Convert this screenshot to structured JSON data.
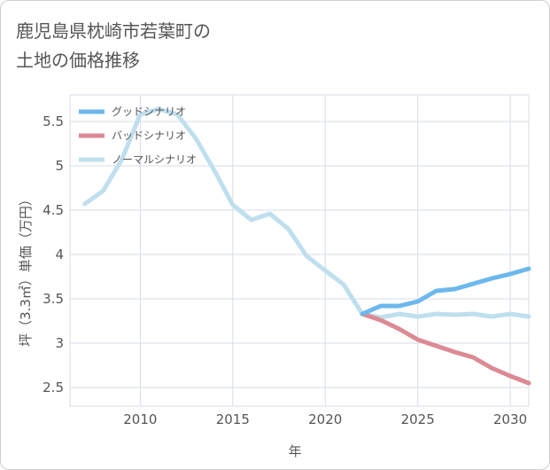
{
  "header": {
    "title_line1": "鹿児島県枕崎市若葉町の",
    "title_line2": "土地の価格推移"
  },
  "chart_data": {
    "type": "line",
    "xlabel": "年",
    "ylabel": "坪（3.3㎡）単価（万円）",
    "xlim": [
      2006.2,
      2031
    ],
    "ylim": [
      2.29,
      5.8
    ],
    "xticks": [
      2010,
      2015,
      2020,
      2025,
      2030
    ],
    "yticks": [
      2.5,
      3,
      3.5,
      4,
      4.5,
      5,
      5.5
    ],
    "grid": true,
    "legend_position": "top-left",
    "series": [
      {
        "name": "グッドシナリオ",
        "color": "#6cb8ec",
        "x": [
          2022,
          2023,
          2024,
          2025,
          2026,
          2027,
          2028,
          2029,
          2030,
          2031
        ],
        "y": [
          3.33,
          3.42,
          3.42,
          3.47,
          3.59,
          3.61,
          3.67,
          3.73,
          3.78,
          3.84
        ]
      },
      {
        "name": "バッドシナリオ",
        "color": "#dc8a94",
        "x": [
          2022,
          2023,
          2024,
          2025,
          2026,
          2027,
          2028,
          2029,
          2030,
          2031
        ],
        "y": [
          3.33,
          3.26,
          3.16,
          3.04,
          2.97,
          2.9,
          2.84,
          2.72,
          2.63,
          2.55
        ]
      },
      {
        "name": "ノーマルシナリオ",
        "color": "#bfdfee",
        "x": [
          2007,
          2008,
          2009,
          2010,
          2011,
          2012,
          2013,
          2014,
          2015,
          2016,
          2017,
          2018,
          2019,
          2020,
          2021,
          2022,
          2023,
          2024,
          2025,
          2026,
          2027,
          2028,
          2029,
          2030,
          2031
        ],
        "y": [
          4.57,
          4.72,
          5.07,
          5.58,
          5.64,
          5.58,
          5.31,
          4.95,
          4.56,
          4.39,
          4.46,
          4.29,
          3.98,
          3.82,
          3.66,
          3.33,
          3.29,
          3.33,
          3.3,
          3.33,
          3.32,
          3.33,
          3.3,
          3.33,
          3.3
        ]
      }
    ]
  }
}
